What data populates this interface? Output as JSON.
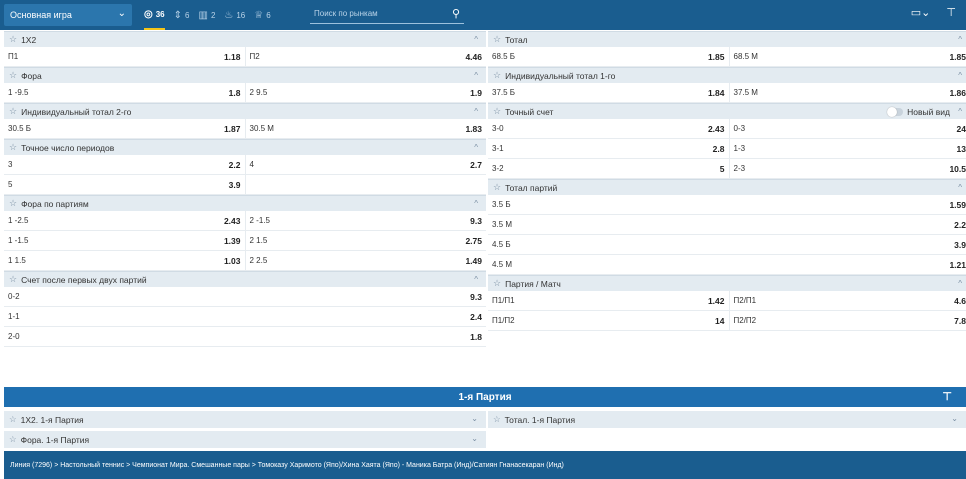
{
  "topbar": {
    "game_select": "Основная игра",
    "filters": [
      {
        "icon": "target-icon",
        "count": "36"
      },
      {
        "icon": "sort-icon",
        "count": "6"
      },
      {
        "icon": "stats-icon",
        "count": "2"
      },
      {
        "icon": "flame-icon",
        "count": "16"
      },
      {
        "icon": "trophy-icon",
        "count": "6"
      }
    ],
    "search_placeholder": "Поиск по рынкам"
  },
  "left_markets": [
    {
      "title": "1X2",
      "rows": [
        [
          [
            "П1",
            "1.18"
          ],
          [
            "П2",
            "4.46"
          ]
        ]
      ]
    },
    {
      "title": "Фора",
      "rows": [
        [
          [
            "1 -9.5",
            "1.8"
          ],
          [
            "2 9.5",
            "1.9"
          ]
        ]
      ]
    },
    {
      "title": "Индивидуальный тотал 2-го",
      "rows": [
        [
          [
            "30.5 Б",
            "1.87"
          ],
          [
            "30.5 М",
            "1.83"
          ]
        ]
      ]
    },
    {
      "title": "Точное число периодов",
      "rows": [
        [
          [
            "3",
            "2.2"
          ],
          [
            "4",
            "2.7"
          ]
        ],
        [
          [
            "5",
            "3.9"
          ],
          [
            "",
            ""
          ]
        ]
      ]
    },
    {
      "title": "Фора по партиям",
      "rows": [
        [
          [
            "1 -2.5",
            "2.43"
          ],
          [
            "2 -1.5",
            "9.3"
          ]
        ],
        [
          [
            "1 -1.5",
            "1.39"
          ],
          [
            "2 1.5",
            "2.75"
          ]
        ],
        [
          [
            "1 1.5",
            "1.03"
          ],
          [
            "2 2.5",
            "1.49"
          ]
        ]
      ]
    },
    {
      "title": "Счет после первых двух партий",
      "rows": [
        [
          [
            "0-2",
            "9.3"
          ]
        ],
        [
          [
            "1-1",
            "2.4"
          ]
        ],
        [
          [
            "2-0",
            "1.8"
          ]
        ]
      ]
    }
  ],
  "right_markets": [
    {
      "title": "Тотал",
      "rows": [
        [
          [
            "68.5 Б",
            "1.85"
          ],
          [
            "68.5 М",
            "1.85"
          ]
        ]
      ]
    },
    {
      "title": "Индивидуальный тотал 1-го",
      "rows": [
        [
          [
            "37.5 Б",
            "1.84"
          ],
          [
            "37.5 М",
            "1.86"
          ]
        ]
      ]
    },
    {
      "title": "Точный счет",
      "toggle": "Новый вид",
      "rows": [
        [
          [
            "3-0",
            "2.43"
          ],
          [
            "0-3",
            "24"
          ]
        ],
        [
          [
            "3-1",
            "2.8"
          ],
          [
            "1-3",
            "13"
          ]
        ],
        [
          [
            "3-2",
            "5"
          ],
          [
            "2-3",
            "10.5"
          ]
        ]
      ]
    },
    {
      "title": "Тотал партий",
      "rows": [
        [
          [
            "3.5 Б",
            "1.59"
          ]
        ],
        [
          [
            "3.5 М",
            "2.2"
          ]
        ],
        [
          [
            "4.5 Б",
            "3.9"
          ]
        ],
        [
          [
            "4.5 М",
            "1.21"
          ]
        ]
      ]
    },
    {
      "title": "Партия / Матч",
      "rows": [
        [
          [
            "П1/П1",
            "1.42"
          ],
          [
            "П2/П1",
            "4.6"
          ]
        ],
        [
          [
            "П1/П2",
            "14"
          ],
          [
            "П2/П2",
            "7.8"
          ]
        ]
      ]
    }
  ],
  "section_banner": "1-я Партия",
  "collapsed": {
    "c1": "1X2. 1-я Партия",
    "c2": "Тотал. 1-я Партия",
    "c3": "Фора. 1-я Партия"
  },
  "footer": "Линия (7296) > Настольный теннис > Чемпионат Мира. Смешанные пары > Томоказу Харимото (Япо)/Хина Хаята (Япо) - Маника Батра (Инд)/Сатиян Гнанасекаран (Инд)"
}
